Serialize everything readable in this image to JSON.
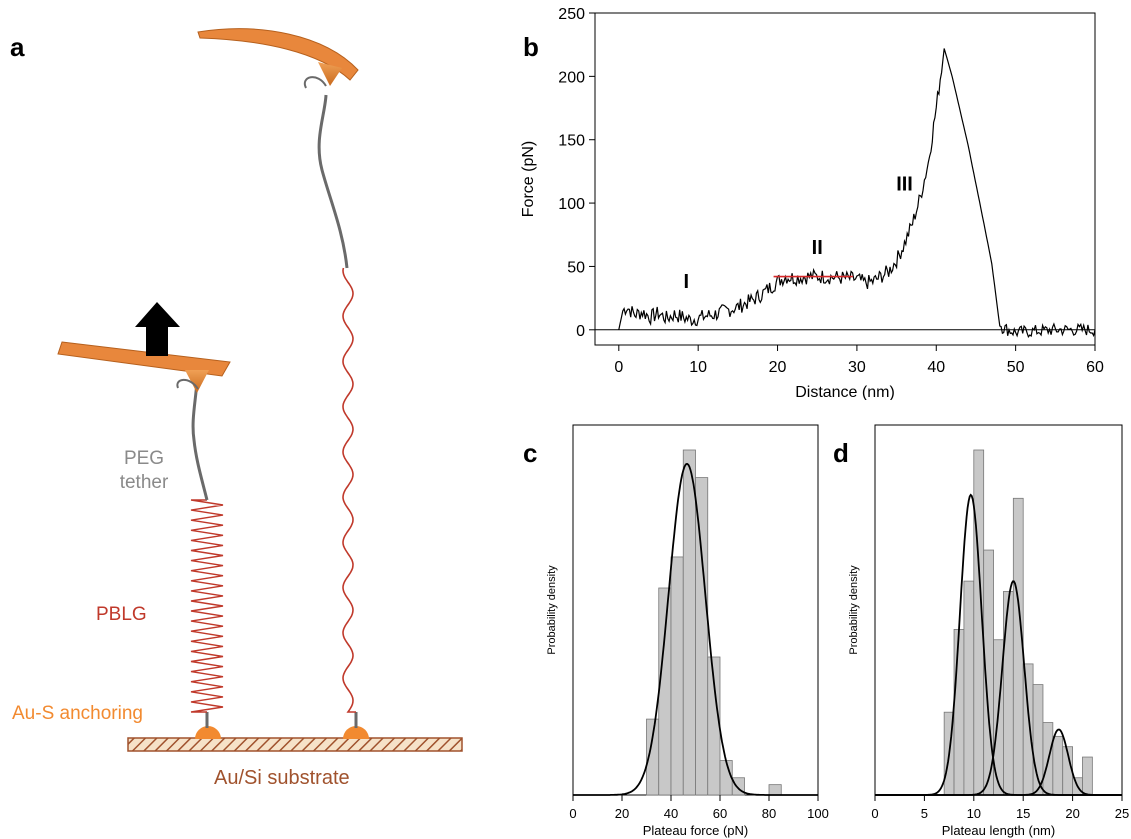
{
  "panels": {
    "a": "a",
    "b": "b",
    "c": "c",
    "d": "d"
  },
  "schematic": {
    "peg_label_line1": "PEG",
    "peg_label_line2": "tether",
    "pblg_label": "PBLG",
    "anchor_label": "Au-S anchoring",
    "substrate_label": "Au/Si substrate",
    "colors": {
      "tip": "#e8873c",
      "pblg": "#c0392b",
      "peg": "#7f7f7f",
      "anchor": "#f28a30",
      "substrate": "#a0522d"
    }
  },
  "chart_data": [
    {
      "id": "b",
      "type": "line",
      "xlabel": "Distance (nm)",
      "ylabel": "Force (pN)",
      "xlim": [
        -3,
        60
      ],
      "ylim": [
        -12,
        250
      ],
      "xticks": [
        0,
        10,
        20,
        30,
        40,
        50,
        60
      ],
      "yticks": [
        0,
        50,
        100,
        150,
        200,
        250
      ],
      "baseline": 0,
      "region_labels": [
        {
          "text": "I",
          "x": 8.5,
          "y": 33
        },
        {
          "text": "II",
          "x": 25,
          "y": 60
        },
        {
          "text": "III",
          "x": 36,
          "y": 110
        }
      ],
      "trace_key": [
        [
          0,
          0
        ],
        [
          0.5,
          15
        ],
        [
          1,
          18
        ],
        [
          2,
          12
        ],
        [
          3,
          14
        ],
        [
          4,
          10
        ],
        [
          5,
          13
        ],
        [
          6,
          9
        ],
        [
          7,
          12
        ],
        [
          8,
          10
        ],
        [
          9,
          8
        ],
        [
          10,
          9
        ],
        [
          11,
          11
        ],
        [
          12,
          12
        ],
        [
          13,
          14
        ],
        [
          14,
          16
        ],
        [
          15,
          18
        ],
        [
          16,
          21
        ],
        [
          17,
          24
        ],
        [
          18,
          28
        ],
        [
          19,
          33
        ],
        [
          20,
          38
        ],
        [
          21,
          42
        ],
        [
          22,
          41
        ],
        [
          24,
          42
        ],
        [
          26,
          42
        ],
        [
          28,
          41
        ],
        [
          30,
          40
        ],
        [
          31,
          37
        ],
        [
          32,
          38
        ],
        [
          33,
          42
        ],
        [
          34,
          46
        ],
        [
          35,
          55
        ],
        [
          36,
          68
        ],
        [
          37,
          84
        ],
        [
          38,
          105
        ],
        [
          39,
          132
        ],
        [
          40,
          175
        ],
        [
          41,
          222
        ],
        [
          42,
          200
        ],
        [
          44,
          146
        ],
        [
          46,
          84
        ],
        [
          47,
          52
        ],
        [
          48,
          3
        ],
        [
          49,
          0
        ],
        [
          50,
          -2
        ],
        [
          55,
          0
        ],
        [
          60,
          0
        ]
      ],
      "plateau_fit": {
        "x": [
          19.5,
          29.5
        ],
        "y": 42,
        "color": "#d62728"
      }
    },
    {
      "id": "c",
      "type": "histogram",
      "xlabel": "Plateau force (pN)",
      "ylabel": "Probability density",
      "xlim": [
        0,
        100
      ],
      "xticks": [
        0,
        20,
        40,
        60,
        80,
        100
      ],
      "bin_width": 5,
      "bins": [
        {
          "start": 30,
          "density": 0.22
        },
        {
          "start": 35,
          "density": 0.6
        },
        {
          "start": 40,
          "density": 0.69
        },
        {
          "start": 45,
          "density": 1.0
        },
        {
          "start": 50,
          "density": 0.92
        },
        {
          "start": 55,
          "density": 0.4
        },
        {
          "start": 60,
          "density": 0.1
        },
        {
          "start": 65,
          "density": 0.05
        },
        {
          "start": 80,
          "density": 0.03
        }
      ],
      "fits": [
        {
          "mean": 46.5,
          "sd": 7.5,
          "peak": 0.96
        }
      ],
      "bar_color": "#c8c8c8"
    },
    {
      "id": "d",
      "type": "histogram",
      "xlabel": "Plateau length (nm)",
      "ylabel": "Probability density",
      "xlim": [
        0,
        25
      ],
      "xticks": [
        0,
        5,
        10,
        15,
        20,
        25
      ],
      "bin_width": 1,
      "bins": [
        {
          "start": 7,
          "density": 0.24
        },
        {
          "start": 8,
          "density": 0.48
        },
        {
          "start": 9,
          "density": 0.62
        },
        {
          "start": 10,
          "density": 1.0
        },
        {
          "start": 11,
          "density": 0.71
        },
        {
          "start": 12,
          "density": 0.45
        },
        {
          "start": 13,
          "density": 0.59
        },
        {
          "start": 14,
          "density": 0.86
        },
        {
          "start": 15,
          "density": 0.38
        },
        {
          "start": 16,
          "density": 0.32
        },
        {
          "start": 17,
          "density": 0.21
        },
        {
          "start": 18,
          "density": 0.17
        },
        {
          "start": 19,
          "density": 0.14
        },
        {
          "start": 20,
          "density": 0.05
        },
        {
          "start": 21,
          "density": 0.11
        }
      ],
      "fits": [
        {
          "mean": 9.7,
          "sd": 1.1,
          "peak": 0.87
        },
        {
          "mean": 14.0,
          "sd": 1.1,
          "peak": 0.62
        },
        {
          "mean": 18.6,
          "sd": 0.95,
          "peak": 0.19
        }
      ],
      "bar_color": "#c8c8c8"
    }
  ]
}
